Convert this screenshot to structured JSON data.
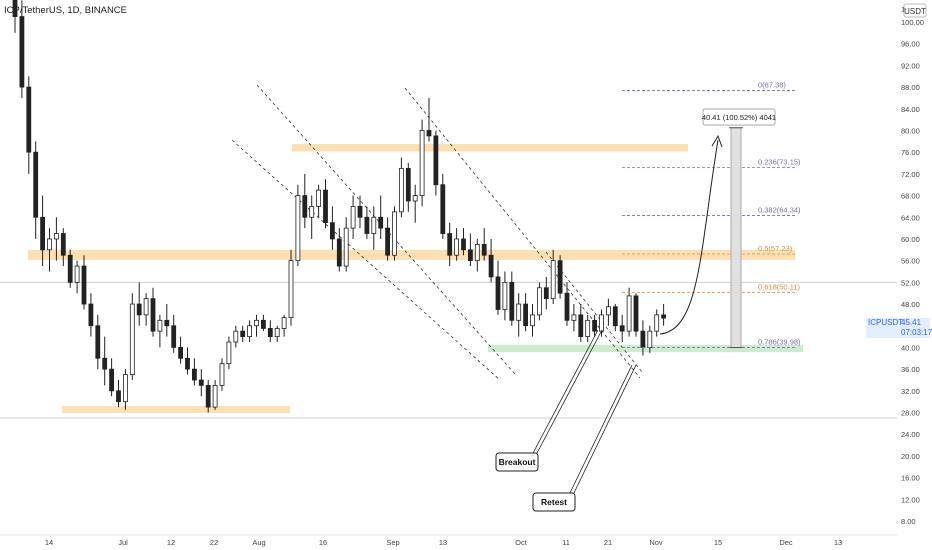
{
  "header": {
    "title": "ICPUSDT, 1D, BINANCE",
    "title_display": "ICP/TetherUS, 1D, BINANCE"
  },
  "price_axis": {
    "currency_badge": "USDT",
    "ticks": [
      "1.00",
      "100.00",
      "96.00",
      "92.00",
      "88.00",
      "84.00",
      "80.00",
      "76.00",
      "72.00",
      "68.00",
      "64.00",
      "60.00",
      "56.00",
      "52.00",
      "48.00",
      "44.00",
      "40.00",
      "36.00",
      "32.00",
      "28.00",
      "24.00",
      "20.00",
      "16.00",
      "12.00",
      "8.00"
    ],
    "last_price_symbol": "ICPUSDT",
    "last_price": "45.41",
    "countdown": "07:03:17"
  },
  "time_axis": {
    "ticks": [
      "14",
      "Jul",
      "12",
      "22",
      "Aug",
      "16",
      "Sep",
      "13",
      "Oct",
      "11",
      "21",
      "Nov",
      "15",
      "Dec",
      "13"
    ]
  },
  "annotations": {
    "measure_label": "40.41 (100.52%) 4041",
    "fib_levels": [
      {
        "label": "0(87.38)",
        "value": 87.38,
        "color": "#7b6fb0"
      },
      {
        "label": "0.236(73.15)",
        "value": 73.15,
        "color": "#7b6fb0"
      },
      {
        "label": "0.382(64.34)",
        "value": 64.34,
        "color": "#7b6fb0"
      },
      {
        "label": "0.5(57.23)",
        "value": 57.23,
        "color": "#e08a3c"
      },
      {
        "label": "0.618(50.11)",
        "value": 50.11,
        "color": "#e08a3c"
      },
      {
        "label": "0.786(39.98)",
        "value": 39.98,
        "color": "#7b6fb0"
      }
    ],
    "callouts": [
      "Breakout",
      "Retest"
    ]
  },
  "chart_data": {
    "type": "candlestick",
    "symbol": "ICPUSDT",
    "interval": "1D",
    "exchange": "BINANCE",
    "ylim": [
      6,
      104
    ],
    "zones": [
      {
        "name": "resistance-top",
        "from": 76.5,
        "to": 77.5,
        "color": "#fbd9a8"
      },
      {
        "name": "resistance-mid",
        "from": 56.5,
        "to": 58,
        "color": "#fbd9a8"
      },
      {
        "name": "support-low",
        "from": 28.3,
        "to": 29.2,
        "color": "#fbd9a8"
      },
      {
        "name": "support-green",
        "from": 39.5,
        "to": 40.5,
        "color": "#c8e6c9"
      }
    ],
    "candles": [
      [
        104,
        106,
        98,
        101
      ],
      [
        101,
        104,
        86,
        88
      ],
      [
        88,
        90,
        72,
        76
      ],
      [
        76,
        78,
        60,
        64
      ],
      [
        64,
        68,
        55,
        58
      ],
      [
        58,
        62,
        54,
        60
      ],
      [
        60,
        64,
        56,
        61
      ],
      [
        61,
        62,
        55,
        57
      ],
      [
        57,
        58,
        51,
        52
      ],
      [
        52,
        56,
        50,
        55
      ],
      [
        55,
        57,
        47,
        48
      ],
      [
        48,
        50,
        42,
        44
      ],
      [
        44,
        46,
        36,
        38
      ],
      [
        38,
        42,
        33,
        36
      ],
      [
        36,
        38,
        31,
        32
      ],
      [
        32,
        34,
        29,
        30
      ],
      [
        30,
        36,
        28.5,
        35
      ],
      [
        35,
        50,
        34,
        48
      ],
      [
        48,
        52,
        44,
        46
      ],
      [
        46,
        50,
        44,
        49
      ],
      [
        49,
        51,
        42,
        43
      ],
      [
        43,
        46,
        40,
        45
      ],
      [
        45,
        48,
        42,
        44
      ],
      [
        44,
        46,
        39,
        40
      ],
      [
        40,
        42,
        37,
        38
      ],
      [
        38,
        40,
        35,
        36
      ],
      [
        36,
        38,
        33,
        34
      ],
      [
        34,
        36,
        31,
        33
      ],
      [
        33,
        34,
        28,
        29
      ],
      [
        29,
        34,
        28.5,
        33
      ],
      [
        33,
        38,
        32,
        37
      ],
      [
        37,
        42,
        36,
        41
      ],
      [
        41,
        44,
        40,
        43
      ],
      [
        43,
        44,
        41,
        42
      ],
      [
        42,
        45,
        41,
        44
      ],
      [
        44,
        46,
        42,
        45
      ],
      [
        45,
        46,
        43,
        43.5
      ],
      [
        43.5,
        45,
        41,
        42
      ],
      [
        42,
        44,
        41,
        43.5
      ],
      [
        43.5,
        46,
        42,
        45.5
      ],
      [
        45.5,
        58,
        44,
        56
      ],
      [
        56,
        70,
        55,
        68
      ],
      [
        68,
        72,
        62,
        64
      ],
      [
        64,
        68,
        60,
        66
      ],
      [
        66,
        70,
        64,
        69
      ],
      [
        69,
        71,
        62,
        63
      ],
      [
        63,
        66,
        58,
        60
      ],
      [
        60,
        62,
        54,
        55
      ],
      [
        55,
        64,
        54,
        62
      ],
      [
        62,
        68,
        60,
        66
      ],
      [
        66,
        68,
        62,
        64
      ],
      [
        64,
        66,
        60,
        61
      ],
      [
        61,
        66,
        58,
        64
      ],
      [
        64,
        68,
        60,
        62
      ],
      [
        62,
        64,
        56,
        57
      ],
      [
        57,
        66,
        56,
        65
      ],
      [
        65,
        75,
        64,
        73
      ],
      [
        73,
        74,
        65,
        67
      ],
      [
        67,
        70,
        63,
        68
      ],
      [
        68,
        82,
        66,
        80
      ],
      [
        80,
        86,
        78,
        79
      ],
      [
        79,
        80,
        68,
        70
      ],
      [
        70,
        72,
        60,
        61
      ],
      [
        61,
        63,
        55,
        57
      ],
      [
        57,
        62,
        56,
        60
      ],
      [
        60,
        62,
        57,
        58
      ],
      [
        58,
        61,
        55,
        56
      ],
      [
        56,
        60,
        54,
        59
      ],
      [
        59,
        62,
        56,
        57
      ],
      [
        57,
        60,
        52,
        53
      ],
      [
        53,
        56,
        46,
        47
      ],
      [
        47,
        54,
        45,
        52
      ],
      [
        52,
        54,
        44,
        45
      ],
      [
        45,
        50,
        42,
        48
      ],
      [
        48,
        50,
        43,
        44
      ],
      [
        44,
        48,
        42,
        46
      ],
      [
        46,
        52,
        45,
        51
      ],
      [
        51,
        53,
        47,
        49
      ],
      [
        49,
        58,
        48,
        56
      ],
      [
        56,
        57,
        49,
        50
      ],
      [
        50,
        52,
        44,
        45
      ],
      [
        45,
        48,
        43,
        46
      ],
      [
        46,
        48,
        41,
        42
      ],
      [
        42,
        46,
        41,
        45
      ],
      [
        45,
        46,
        42,
        43
      ],
      [
        43,
        47,
        42,
        46
      ],
      [
        46,
        49,
        44,
        47.5
      ],
      [
        47.5,
        48,
        43,
        44
      ],
      [
        44,
        46,
        41,
        43
      ],
      [
        43,
        51,
        42,
        49.5
      ],
      [
        49.5,
        50,
        42,
        43
      ],
      [
        43,
        45,
        38.5,
        40
      ],
      [
        40,
        44,
        39,
        43
      ],
      [
        43,
        47,
        42,
        46
      ],
      [
        46,
        48,
        44,
        45.41
      ]
    ]
  }
}
